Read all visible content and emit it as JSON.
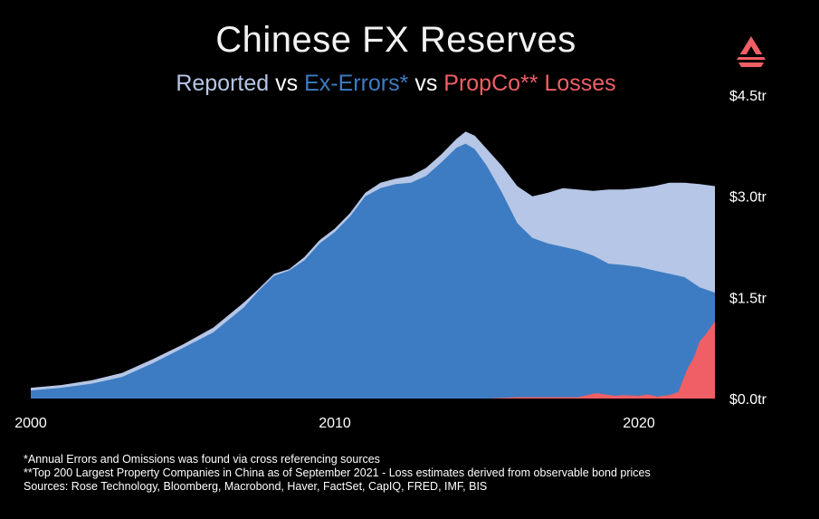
{
  "title": "Chinese FX Reserves",
  "subtitle": {
    "part1": "Reported",
    "sep1": " vs ",
    "part2": "Ex-Errors*",
    "sep2": " vs ",
    "part3": "PropCo** Losses"
  },
  "colors": {
    "reported": "#b5c6e6",
    "ex_errors": "#3d7cc2",
    "propco": "#ef5f65",
    "logo": "#ef5f65"
  },
  "logo_icon": "triangle-logo-icon",
  "footnotes": [
    "*Annual Errors and Omissions was found via cross referencing sources",
    "**Top 200 Largest Property Companies in China as of September 2021 - Loss estimates derived from observable bond prices",
    "Sources: Rose Technology, Bloomberg, Macrobond, Haver, FactSet, CapIQ, FRED, IMF, BIS"
  ],
  "chart_data": {
    "type": "area",
    "title": "Chinese FX Reserves",
    "subtitle": "Reported vs Ex-Errors* vs PropCo** Losses",
    "xlim": [
      2000,
      2022.5
    ],
    "ylim": [
      0,
      4.5
    ],
    "x_ticks": [
      {
        "value": 2000,
        "label": "2000"
      },
      {
        "value": 2010,
        "label": "2010"
      },
      {
        "value": 2020,
        "label": "2020"
      }
    ],
    "y_ticks": [
      {
        "value": 0,
        "label": "$0.0tr"
      },
      {
        "value": 1.5,
        "label": "$1.5tr"
      },
      {
        "value": 3.0,
        "label": "$3.0tr"
      },
      {
        "value": 4.5,
        "label": "$4.5tr"
      }
    ],
    "y_axis_position": "right",
    "grid": false,
    "series": [
      {
        "name": "Reported",
        "x": [
          2000,
          2001,
          2002,
          2003,
          2004,
          2005,
          2006,
          2007,
          2007.5,
          2008,
          2008.5,
          2009,
          2009.5,
          2010,
          2010.5,
          2011,
          2011.5,
          2012,
          2012.5,
          2013,
          2013.5,
          2014,
          2014.3,
          2014.6,
          2015,
          2015.5,
          2016,
          2016.5,
          2017,
          2017.5,
          2018,
          2018.5,
          2019,
          2019.5,
          2020,
          2020.5,
          2021,
          2021.5,
          2022,
          2022.5
        ],
        "values": [
          0.16,
          0.2,
          0.27,
          0.38,
          0.58,
          0.8,
          1.05,
          1.42,
          1.63,
          1.85,
          1.92,
          2.1,
          2.35,
          2.52,
          2.75,
          3.05,
          3.2,
          3.26,
          3.3,
          3.42,
          3.62,
          3.85,
          3.96,
          3.9,
          3.7,
          3.45,
          3.15,
          3.0,
          3.05,
          3.12,
          3.1,
          3.08,
          3.1,
          3.1,
          3.12,
          3.15,
          3.2,
          3.2,
          3.18,
          3.15
        ]
      },
      {
        "name": "Ex-Errors*",
        "x": [
          2000,
          2001,
          2002,
          2003,
          2004,
          2005,
          2006,
          2007,
          2007.5,
          2008,
          2008.5,
          2009,
          2009.5,
          2010,
          2010.5,
          2011,
          2011.5,
          2012,
          2012.5,
          2013,
          2013.5,
          2014,
          2014.3,
          2014.6,
          2015,
          2015.5,
          2016,
          2016.5,
          2017,
          2017.5,
          2018,
          2018.5,
          2019,
          2019.5,
          2020,
          2020.5,
          2021,
          2021.5,
          2022,
          2022.5
        ],
        "values": [
          0.12,
          0.16,
          0.22,
          0.32,
          0.52,
          0.75,
          0.98,
          1.35,
          1.6,
          1.82,
          1.9,
          2.05,
          2.3,
          2.47,
          2.7,
          3.0,
          3.12,
          3.18,
          3.2,
          3.3,
          3.5,
          3.72,
          3.78,
          3.7,
          3.45,
          3.05,
          2.6,
          2.38,
          2.3,
          2.25,
          2.2,
          2.12,
          2.0,
          1.98,
          1.95,
          1.9,
          1.85,
          1.8,
          1.65,
          1.57
        ]
      },
      {
        "name": "PropCo** Losses",
        "x": [
          2000,
          2015,
          2016,
          2017,
          2018,
          2018.3,
          2018.6,
          2018.9,
          2019.2,
          2019.5,
          2020,
          2020.3,
          2020.6,
          2021,
          2021.3,
          2021.6,
          2021.8,
          2022,
          2022.2,
          2022.5
        ],
        "values": [
          0,
          0,
          0.02,
          0.02,
          0.02,
          0.05,
          0.08,
          0.06,
          0.04,
          0.05,
          0.04,
          0.06,
          0.03,
          0.05,
          0.1,
          0.45,
          0.6,
          0.85,
          0.95,
          1.15
        ]
      }
    ]
  }
}
